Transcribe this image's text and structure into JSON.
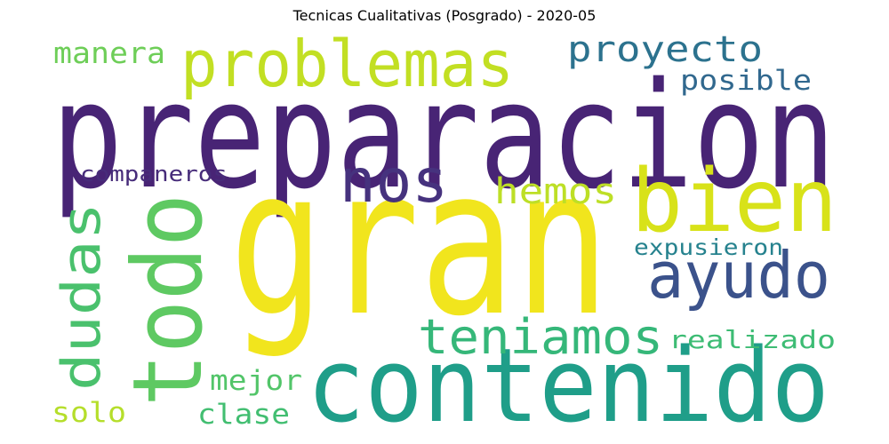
{
  "title": "Tecnicas Cualitativas (Posgrado) - 2020-05",
  "words": [
    {
      "id": "preparacion",
      "text": "preparacion",
      "color": "#482475"
    },
    {
      "id": "gran",
      "text": "gran",
      "color": "#f1e51d"
    },
    {
      "id": "contenido",
      "text": "contenido",
      "color": "#1f9e89"
    },
    {
      "id": "problemas",
      "text": "problemas",
      "color": "#c2df23"
    },
    {
      "id": "bien",
      "text": "bien",
      "color": "#d8e219"
    },
    {
      "id": "todo",
      "text": "todo",
      "color": "#5ec962"
    },
    {
      "id": "nos",
      "text": "nos",
      "color": "#46327e"
    },
    {
      "id": "ayudo",
      "text": "ayudo",
      "color": "#3b528b"
    },
    {
      "id": "dudas",
      "text": "dudas",
      "color": "#4ac16d"
    },
    {
      "id": "teniamos",
      "text": "teniamos",
      "color": "#35b779"
    },
    {
      "id": "proyecto",
      "text": "proyecto",
      "color": "#2c728e"
    },
    {
      "id": "hemos",
      "text": "hemos",
      "color": "#bddf26"
    },
    {
      "id": "manera",
      "text": "manera",
      "color": "#6ece58"
    },
    {
      "id": "posible",
      "text": "posible",
      "color": "#31688e"
    },
    {
      "id": "companeros",
      "text": "companeros",
      "color": "#472c7a"
    },
    {
      "id": "expusieron",
      "text": "expusieron",
      "color": "#26828e"
    },
    {
      "id": "realizado",
      "text": "realizado",
      "color": "#3dbc74"
    },
    {
      "id": "mejor",
      "text": "mejor",
      "color": "#52c569"
    },
    {
      "id": "solo",
      "text": "solo",
      "color": "#b5de2b"
    },
    {
      "id": "clase",
      "text": "clase",
      "color": "#42be71"
    }
  ]
}
